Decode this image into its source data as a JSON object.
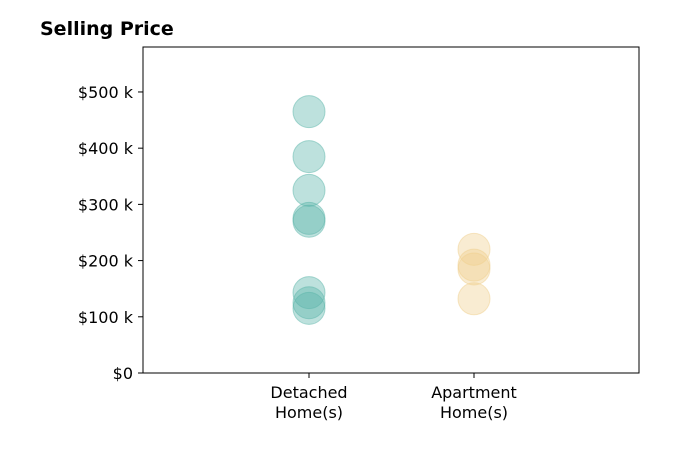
{
  "chart_data": {
    "type": "scatter",
    "title": "Selling Price",
    "xlabel": "",
    "ylabel": "",
    "categories": [
      [
        "Detached",
        "Home(s)"
      ],
      [
        "Apartment",
        "Home(s)"
      ]
    ],
    "ylim": [
      0,
      580000
    ],
    "yticks": [
      0,
      100000,
      200000,
      300000,
      400000,
      500000
    ],
    "ytick_labels": [
      "$0",
      "$100 k",
      "$200 k",
      "$300 k",
      "$400 k",
      "$500 k"
    ],
    "grid": false,
    "series": [
      {
        "category_index": 0,
        "color": "#5bb5aa",
        "values": [
          465000,
          385000,
          325000,
          275000,
          270000,
          143000,
          125000,
          115000
        ]
      },
      {
        "category_index": 1,
        "color": "#efd08e",
        "values": [
          220000,
          192000,
          185000,
          132000
        ]
      }
    ]
  }
}
